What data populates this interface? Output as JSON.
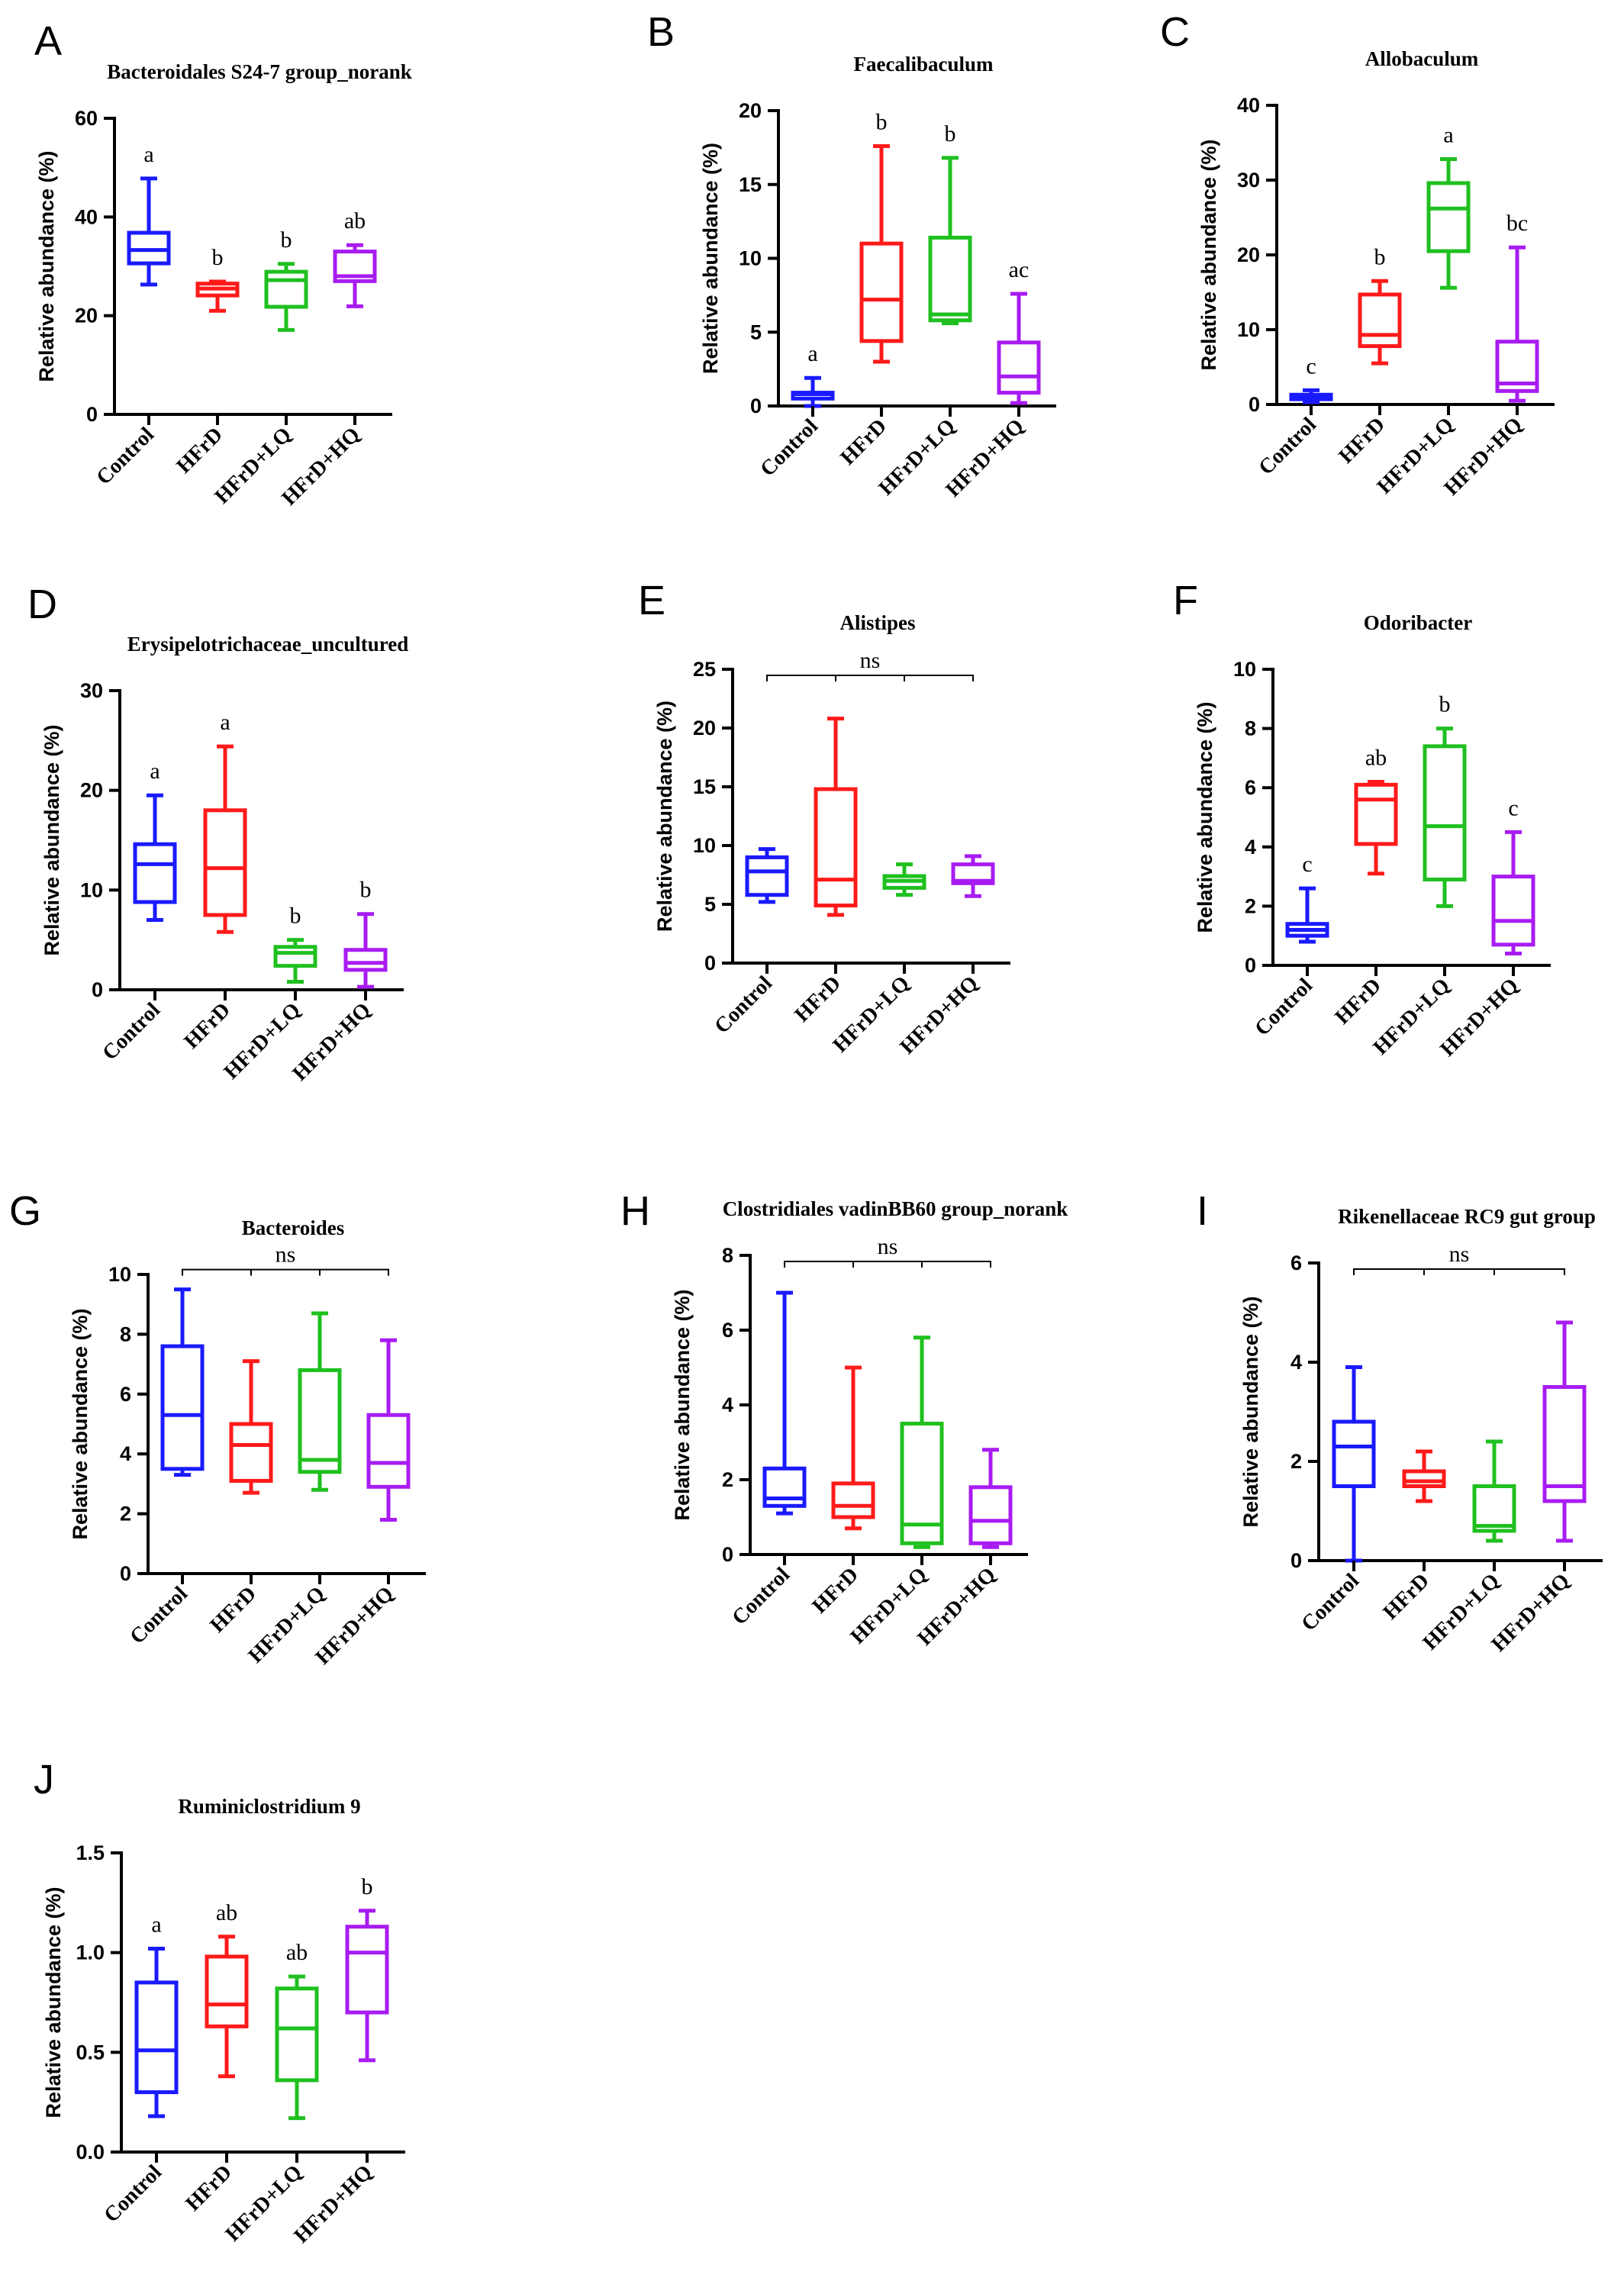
{
  "colors": {
    "Control": "#1a1aff",
    "HFrD": "#ff1a1a",
    "HFrD+LQ": "#1fc01f",
    "HFrD+HQ": "#a81cf2",
    "axis": "#000000"
  },
  "chart_data": [
    {
      "type": "box",
      "letter": "A",
      "title": "Bacteroidales S24-7 group_norank",
      "ylabel": "Relative abundance (%)",
      "categories": [
        "Control",
        "HFrD",
        "HFrD+LQ",
        "HFrD+HQ"
      ],
      "ylim": [
        0,
        60
      ],
      "yticks": [
        "0",
        "20",
        "40",
        "60"
      ],
      "boxes": [
        {
          "min": 26.3,
          "q1": 30.6,
          "median": 33.3,
          "q3": 36.8,
          "max": 47.8
        },
        {
          "min": 21.0,
          "q1": 24.1,
          "median": 25.5,
          "q3": 26.5,
          "max": 26.9
        },
        {
          "min": 17.1,
          "q1": 21.8,
          "median": 27.2,
          "q3": 28.9,
          "max": 30.5
        },
        {
          "min": 21.9,
          "q1": 27.0,
          "median": 28.0,
          "q3": 33.0,
          "max": 34.3
        }
      ],
      "significance": [
        "a",
        "b",
        "b",
        "ab"
      ]
    },
    {
      "type": "box",
      "letter": "B",
      "title": "Faecalibaculum",
      "ylabel": "Relative abundance (%)",
      "categories": [
        "Control",
        "HFrD",
        "HFrD+LQ",
        "HFrD+HQ"
      ],
      "ylim": [
        0,
        20
      ],
      "yticks": [
        "0",
        "5",
        "10",
        "15",
        "20"
      ],
      "boxes": [
        {
          "min": 0.0,
          "q1": 0.5,
          "median": 0.8,
          "q3": 0.9,
          "max": 1.9
        },
        {
          "min": 3.0,
          "q1": 4.4,
          "median": 7.2,
          "q3": 11.0,
          "max": 17.6
        },
        {
          "min": 5.6,
          "q1": 5.8,
          "median": 6.2,
          "q3": 11.4,
          "max": 16.8
        },
        {
          "min": 0.2,
          "q1": 0.9,
          "median": 2.0,
          "q3": 4.3,
          "max": 7.6
        }
      ],
      "significance": [
        "a",
        "b",
        "b",
        "ac"
      ]
    },
    {
      "type": "box",
      "letter": "C",
      "title": "Allobaculum",
      "ylabel": "Relative abundance (%)",
      "categories": [
        "Control",
        "HFrD",
        "HFrD+LQ",
        "HFrD+HQ"
      ],
      "ylim": [
        0,
        40
      ],
      "yticks": [
        "0",
        "10",
        "20",
        "30",
        "40"
      ],
      "boxes": [
        {
          "min": 0.3,
          "q1": 0.7,
          "median": 1.0,
          "q3": 1.3,
          "max": 1.9
        },
        {
          "min": 5.5,
          "q1": 7.8,
          "median": 9.3,
          "q3": 14.7,
          "max": 16.5
        },
        {
          "min": 15.6,
          "q1": 20.5,
          "median": 26.2,
          "q3": 29.6,
          "max": 32.8
        },
        {
          "min": 0.5,
          "q1": 1.8,
          "median": 2.8,
          "q3": 8.4,
          "max": 21.0
        }
      ],
      "significance": [
        "c",
        "b",
        "a",
        "bc"
      ]
    },
    {
      "type": "box",
      "letter": "D",
      "title": "Erysipelotrichaceae_uncultured",
      "ylabel": "Relative abundance (%)",
      "categories": [
        "Control",
        "HFrD",
        "HFrD+LQ",
        "HFrD+HQ"
      ],
      "ylim": [
        0,
        30
      ],
      "yticks": [
        "0",
        "10",
        "20",
        "30"
      ],
      "boxes": [
        {
          "min": 7.0,
          "q1": 8.8,
          "median": 12.6,
          "q3": 14.6,
          "max": 19.5
        },
        {
          "min": 5.8,
          "q1": 7.5,
          "median": 12.2,
          "q3": 18.0,
          "max": 24.4
        },
        {
          "min": 0.8,
          "q1": 2.4,
          "median": 3.7,
          "q3": 4.3,
          "max": 5.0
        },
        {
          "min": 0.3,
          "q1": 2.0,
          "median": 2.7,
          "q3": 4.0,
          "max": 7.6
        }
      ],
      "significance": [
        "a",
        "a",
        "b",
        "b"
      ]
    },
    {
      "type": "box",
      "letter": "E",
      "title": "Alistipes",
      "ylabel": "Relative abundance (%)",
      "categories": [
        "Control",
        "HFrD",
        "HFrD+LQ",
        "HFrD+HQ"
      ],
      "ylim": [
        0,
        25
      ],
      "yticks": [
        "0",
        "5",
        "10",
        "15",
        "20",
        "25"
      ],
      "boxes": [
        {
          "min": 5.2,
          "q1": 5.8,
          "median": 7.8,
          "q3": 9.0,
          "max": 9.7
        },
        {
          "min": 4.1,
          "q1": 4.9,
          "median": 7.1,
          "q3": 14.8,
          "max": 20.8
        },
        {
          "min": 5.8,
          "q1": 6.4,
          "median": 7.0,
          "q3": 7.4,
          "max": 8.4
        },
        {
          "min": 5.7,
          "q1": 6.8,
          "median": 7.0,
          "q3": 8.4,
          "max": 9.1
        }
      ],
      "significance": "ns"
    },
    {
      "type": "box",
      "letter": "F",
      "title": "Odoribacter",
      "ylabel": "Relative abundance (%)",
      "categories": [
        "Control",
        "HFrD",
        "HFrD+LQ",
        "HFrD+HQ"
      ],
      "ylim": [
        0,
        10
      ],
      "yticks": [
        "0",
        "2",
        "4",
        "6",
        "8",
        "10"
      ],
      "boxes": [
        {
          "min": 0.8,
          "q1": 1.0,
          "median": 1.2,
          "q3": 1.4,
          "max": 2.6
        },
        {
          "min": 3.1,
          "q1": 4.1,
          "median": 5.6,
          "q3": 6.1,
          "max": 6.2
        },
        {
          "min": 2.0,
          "q1": 2.9,
          "median": 4.7,
          "q3": 7.4,
          "max": 8.0
        },
        {
          "min": 0.4,
          "q1": 0.7,
          "median": 1.5,
          "q3": 3.0,
          "max": 4.5
        }
      ],
      "significance": [
        "c",
        "ab",
        "b",
        "c"
      ]
    },
    {
      "type": "box",
      "letter": "G",
      "title": "Bacteroides",
      "ylabel": "Relative abundance (%)",
      "categories": [
        "Control",
        "HFrD",
        "HFrD+LQ",
        "HFrD+HQ"
      ],
      "ylim": [
        0,
        10
      ],
      "yticks": [
        "0",
        "2",
        "4",
        "6",
        "8",
        "10"
      ],
      "boxes": [
        {
          "min": 3.3,
          "q1": 3.5,
          "median": 5.3,
          "q3": 7.6,
          "max": 9.5
        },
        {
          "min": 2.7,
          "q1": 3.1,
          "median": 4.3,
          "q3": 5.0,
          "max": 7.1
        },
        {
          "min": 2.8,
          "q1": 3.4,
          "median": 3.8,
          "q3": 6.8,
          "max": 8.7
        },
        {
          "min": 1.8,
          "q1": 2.9,
          "median": 3.7,
          "q3": 5.3,
          "max": 7.8
        }
      ],
      "significance": "ns"
    },
    {
      "type": "box",
      "letter": "H",
      "title": "Clostridiales vadinBB60 group_norank",
      "ylabel": "Relative abundance (%)",
      "categories": [
        "Control",
        "HFrD",
        "HFrD+LQ",
        "HFrD+HQ"
      ],
      "ylim": [
        0,
        8
      ],
      "yticks": [
        "0",
        "2",
        "4",
        "6",
        "8"
      ],
      "boxes": [
        {
          "min": 1.1,
          "q1": 1.3,
          "median": 1.5,
          "q3": 2.3,
          "max": 7.0
        },
        {
          "min": 0.7,
          "q1": 1.0,
          "median": 1.3,
          "q3": 1.9,
          "max": 5.0
        },
        {
          "min": 0.2,
          "q1": 0.3,
          "median": 0.8,
          "q3": 3.5,
          "max": 5.8
        },
        {
          "min": 0.2,
          "q1": 0.3,
          "median": 0.9,
          "q3": 1.8,
          "max": 2.8
        }
      ],
      "significance": "ns"
    },
    {
      "type": "box",
      "letter": "I",
      "title": "Rikenellaceae RC9 gut group",
      "ylabel": "Relative abundance (%)",
      "categories": [
        "Control",
        "HFrD",
        "HFrD+LQ",
        "HFrD+HQ"
      ],
      "ylim": [
        0,
        6
      ],
      "yticks": [
        "0",
        "2",
        "4",
        "6"
      ],
      "boxes": [
        {
          "min": 0.0,
          "q1": 1.5,
          "median": 2.3,
          "q3": 2.8,
          "max": 3.9
        },
        {
          "min": 1.2,
          "q1": 1.5,
          "median": 1.6,
          "q3": 1.8,
          "max": 2.2
        },
        {
          "min": 0.4,
          "q1": 0.6,
          "median": 0.7,
          "q3": 1.5,
          "max": 2.4
        },
        {
          "min": 0.4,
          "q1": 1.2,
          "median": 1.5,
          "q3": 3.5,
          "max": 4.8
        }
      ],
      "significance": "ns"
    },
    {
      "type": "box",
      "letter": "J",
      "title": "Ruminiclostridium 9",
      "ylabel": "Relative abundance (%)",
      "categories": [
        "Control",
        "HFrD",
        "HFrD+LQ",
        "HFrD+HQ"
      ],
      "ylim": [
        0,
        1.5
      ],
      "yticks": [
        "0.0",
        "0.5",
        "1.0",
        "1.5"
      ],
      "boxes": [
        {
          "min": 0.18,
          "q1": 0.3,
          "median": 0.51,
          "q3": 0.85,
          "max": 1.02
        },
        {
          "min": 0.38,
          "q1": 0.63,
          "median": 0.74,
          "q3": 0.98,
          "max": 1.08
        },
        {
          "min": 0.17,
          "q1": 0.36,
          "median": 0.62,
          "q3": 0.82,
          "max": 0.88
        },
        {
          "min": 0.46,
          "q1": 0.7,
          "median": 1.0,
          "q3": 1.13,
          "max": 1.21
        }
      ],
      "significance": [
        "a",
        "ab",
        "ab",
        "b"
      ]
    }
  ]
}
